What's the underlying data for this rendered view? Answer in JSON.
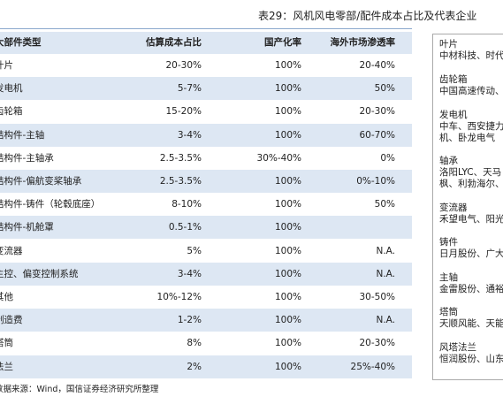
{
  "header": {
    "title": "表29：风机风电零部/配件成本占比及代表企业"
  },
  "table": {
    "columns": [
      "大部件类型",
      "估算成本占比",
      "国产化率",
      "海外市场渗透率"
    ],
    "rows": [
      [
        "叶片",
        "20-30%",
        "100%",
        "20-40%"
      ],
      [
        "发电机",
        "5-7%",
        "100%",
        "50%"
      ],
      [
        "齿轮箱",
        "15-20%",
        "100%",
        "20-30%"
      ],
      [
        "结构件-主轴",
        "3-4%",
        "100%",
        "60-70%"
      ],
      [
        "结构件-主轴承",
        "2.5-3.5%",
        "30%-40%",
        "0%"
      ],
      [
        "结构件-偏航变桨轴承",
        "2.5-3.5%",
        "100%",
        "0%-10%"
      ],
      [
        "结构件-铸件（轮毂底座）",
        "8-10%",
        "100%",
        "50%"
      ],
      [
        "结构件-机舱罩",
        "0.5-1%",
        "100%",
        null
      ],
      [
        "变流器",
        "5%",
        "100%",
        "N.A."
      ],
      [
        "主控、偏变控制系统",
        "3-4%",
        "100%",
        "N.A."
      ],
      [
        "其他",
        "10%-12%",
        "100%",
        "30-50%"
      ],
      [
        "制造费",
        "1-2%",
        "100%",
        "N.A."
      ],
      [
        "塔筒",
        "8%",
        "100%",
        "20-30%"
      ],
      [
        "法兰",
        "2%",
        "100%",
        "25%-40%"
      ]
    ]
  },
  "sidebar": [
    {
      "name": "叶片",
      "companies": [
        "中材科技、时代"
      ]
    },
    {
      "name": "齿轮箱",
      "companies": [
        "中国高速传动、"
      ]
    },
    {
      "name": "发电机",
      "companies": [
        "中车、西安捷力",
        "机、卧龙电气"
      ]
    },
    {
      "name": "轴承",
      "companies": [
        "洛阳LYC、天马",
        "枫、利勃海尔、"
      ]
    },
    {
      "name": "变流器",
      "companies": [
        "禾望电气、阳光"
      ]
    },
    {
      "name": "铸件",
      "companies": [
        "日月股份、广大"
      ]
    },
    {
      "name": "主轴",
      "companies": [
        "金雷股份、通裕"
      ]
    },
    {
      "name": "塔筒",
      "companies": [
        "天顺风能、天能"
      ]
    },
    {
      "name": "风塔法兰",
      "companies": [
        "恒润股份、山东"
      ]
    }
  ],
  "source": "数据来源：Wind，国信证券经济研究所整理"
}
